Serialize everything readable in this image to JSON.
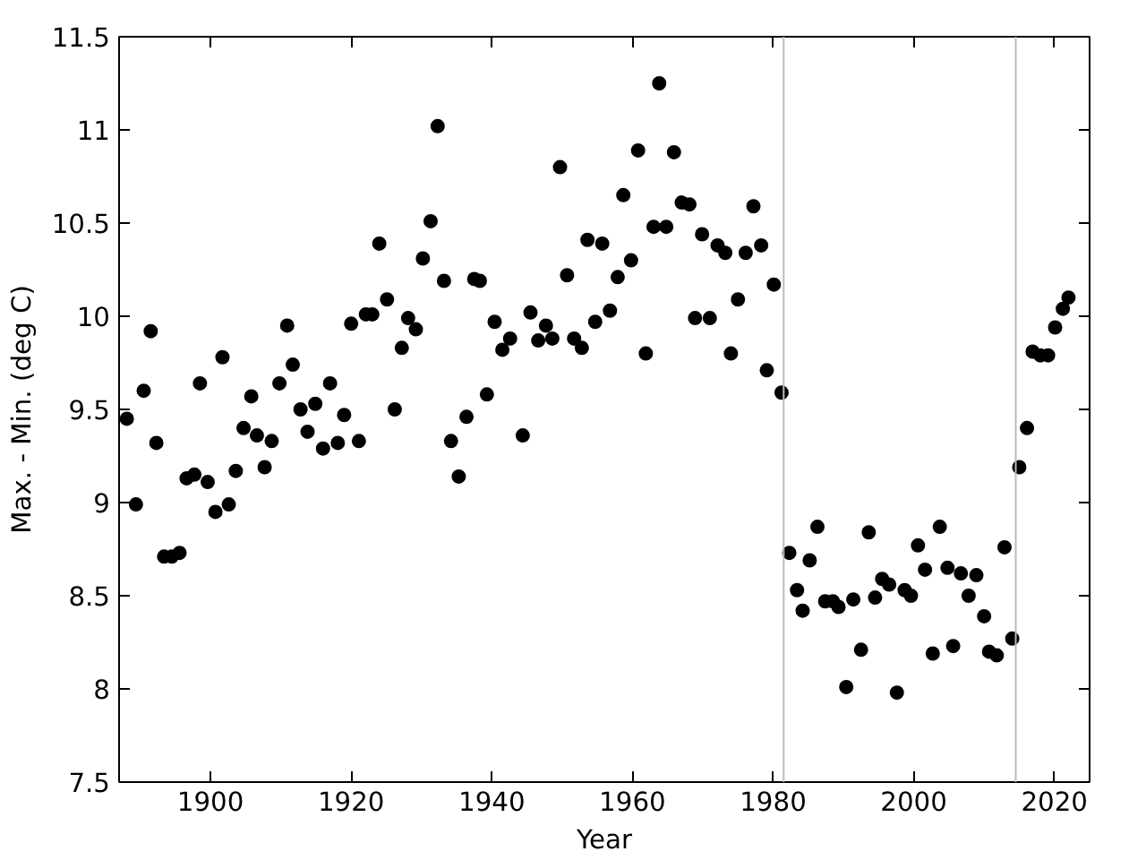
{
  "chart_data": {
    "type": "scatter",
    "xlabel": "Year",
    "ylabel": "Max. - Min. (deg C)",
    "xlim": [
      1887,
      2025
    ],
    "ylim": [
      7.5,
      11.5
    ],
    "xticks": [
      1900,
      1920,
      1940,
      1960,
      1980,
      2000,
      2020
    ],
    "yticks": [
      7.5,
      {
        "value": 8,
        "label": "8"
      },
      8.5,
      {
        "value": 9,
        "label": "9"
      },
      9.5,
      {
        "value": 10,
        "label": "10"
      },
      10.5,
      {
        "value": 11,
        "label": "11"
      },
      11.5
    ],
    "marker": "circle",
    "ref_lines": [
      {
        "axis": "x",
        "value": 1981.5,
        "color": "#bbbbbb"
      },
      {
        "axis": "x",
        "value": 2014.5,
        "color": "#bbbbbb"
      }
    ],
    "series": [
      {
        "color": "#000000",
        "x": [
          1888.1,
          1889.4,
          1890.5,
          1891.5,
          1892.3,
          1893.4,
          1894.5,
          1895.6,
          1896.6,
          1897.7,
          1898.5,
          1899.6,
          1900.7,
          1901.7,
          1902.6,
          1903.6,
          1904.7,
          1905.8,
          1906.6,
          1907.7,
          1908.7,
          1909.8,
          1910.9,
          1911.7,
          1912.8,
          1913.8,
          1914.9,
          1916.0,
          1917.0,
          1918.1,
          1919.0,
          1920.0,
          1921.1,
          1922.1,
          1923.0,
          1924.0,
          1925.1,
          1926.2,
          1927.2,
          1928.1,
          1929.2,
          1930.2,
          1931.3,
          1932.3,
          1933.2,
          1934.2,
          1935.3,
          1936.4,
          1937.5,
          1938.3,
          1939.3,
          1940.4,
          1941.5,
          1942.6,
          1944.4,
          1945.5,
          1946.6,
          1947.7,
          1948.6,
          1949.7,
          1950.7,
          1951.7,
          1952.8,
          1953.6,
          1954.7,
          1955.7,
          1956.8,
          1957.9,
          1958.7,
          1959.8,
          1960.8,
          1961.9,
          1963.0,
          1963.8,
          1964.8,
          1965.9,
          1967.0,
          1968.1,
          1968.9,
          1969.9,
          1971.0,
          1972.1,
          1973.2,
          1974.0,
          1975.0,
          1976.1,
          1977.2,
          1978.3,
          1979.1,
          1980.1,
          1981.2,
          1982.3,
          1983.4,
          1984.2,
          1985.2,
          1986.3,
          1987.4,
          1988.5,
          1989.3,
          1990.4,
          1991.4,
          1992.5,
          1993.6,
          1994.5,
          1995.5,
          1996.5,
          1997.6,
          1998.7,
          1999.6,
          2000.6,
          2001.6,
          2002.7,
          2003.7,
          2004.8,
          2005.6,
          2006.7,
          2007.8,
          2008.9,
          2010.0,
          2010.7,
          2011.8,
          2012.9,
          2014.0,
          2015.0,
          2016.1,
          2016.9,
          2018.0,
          2019.1,
          2020.1,
          2021.2,
          2022.0
        ],
        "values": [
          9.45,
          8.99,
          9.6,
          9.92,
          9.32,
          8.71,
          8.71,
          8.73,
          9.13,
          9.15,
          9.64,
          9.11,
          8.95,
          9.78,
          8.99,
          9.17,
          9.4,
          9.57,
          9.36,
          9.19,
          9.33,
          9.64,
          9.95,
          9.74,
          9.5,
          9.38,
          9.53,
          9.29,
          9.64,
          9.32,
          9.47,
          9.96,
          9.33,
          10.01,
          10.01,
          10.39,
          10.09,
          9.5,
          9.83,
          9.99,
          9.93,
          10.31,
          10.51,
          11.02,
          10.19,
          9.33,
          9.14,
          9.46,
          10.2,
          10.19,
          9.58,
          9.97,
          9.82,
          9.88,
          9.36,
          10.02,
          9.87,
          9.95,
          9.88,
          10.8,
          10.22,
          9.88,
          9.83,
          10.41,
          9.97,
          10.39,
          10.03,
          10.21,
          10.65,
          10.3,
          10.89,
          9.8,
          10.48,
          11.25,
          10.48,
          10.88,
          10.61,
          10.6,
          9.99,
          10.44,
          9.99,
          10.38,
          10.34,
          9.8,
          10.09,
          10.34,
          10.59,
          10.38,
          9.71,
          10.17,
          9.59,
          8.73,
          8.53,
          8.42,
          8.69,
          8.87,
          8.47,
          8.47,
          8.44,
          8.01,
          8.48,
          8.21,
          8.84,
          8.49,
          8.59,
          8.56,
          7.98,
          8.53,
          8.5,
          8.77,
          8.64,
          8.19,
          8.87,
          8.65,
          8.23,
          8.62,
          8.5,
          8.61,
          8.39,
          8.2,
          8.18,
          8.76,
          8.27,
          9.19,
          9.4,
          9.81,
          9.79,
          9.79,
          9.94,
          10.04,
          10.1
        ]
      }
    ]
  }
}
